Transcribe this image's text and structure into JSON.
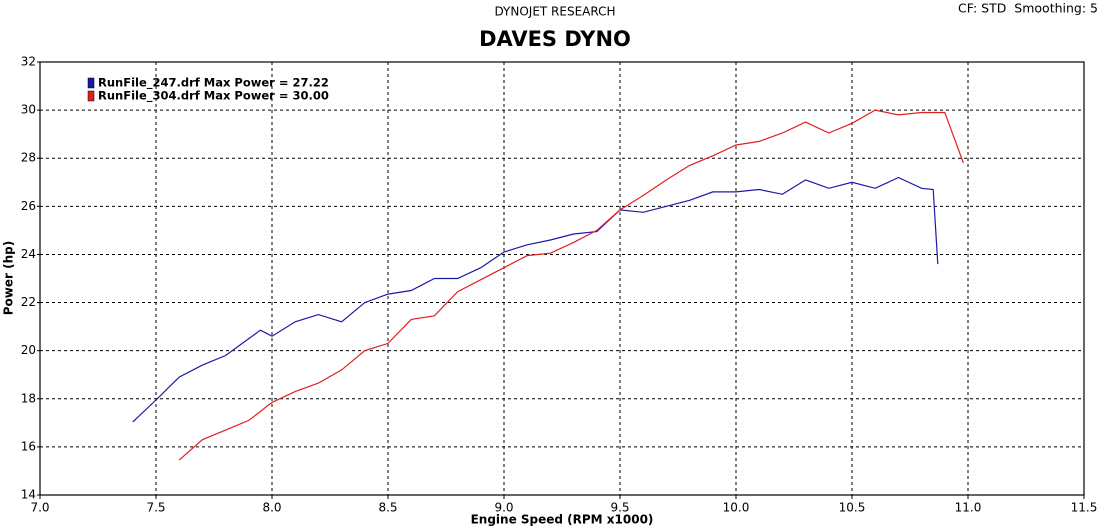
{
  "chart_data": {
    "type": "line",
    "header": "DYNOJET RESEARCH",
    "title": "DAVES DYNO",
    "settings_note": "CF: STD  Smoothing: 5",
    "xlabel": "Engine Speed (RPM x1000)",
    "ylabel": "Power (hp)",
    "xlim": [
      7,
      11.5
    ],
    "ylim": [
      14,
      32
    ],
    "xticks": [
      {
        "value": 7,
        "label": "7.0"
      },
      7.5,
      {
        "value": 8,
        "label": "8.0"
      },
      8.5,
      {
        "value": 9,
        "label": "9.0"
      },
      9.5,
      {
        "value": 10,
        "label": "10.0"
      },
      10.5,
      {
        "value": 11,
        "label": "11.0"
      },
      11.5
    ],
    "yticks": [
      14,
      16,
      18,
      20,
      22,
      24,
      26,
      28,
      30,
      32
    ],
    "grid": true,
    "legend": "upper left",
    "series": [
      {
        "name": "RunFile_247.drf Max Power = 27.22",
        "color": "#1a1aa6",
        "x": [
          7.4,
          7.5,
          7.6,
          7.7,
          7.8,
          7.9,
          7.95,
          8.0,
          8.1,
          8.2,
          8.3,
          8.4,
          8.5,
          8.6,
          8.7,
          8.8,
          8.9,
          9.0,
          9.1,
          9.2,
          9.3,
          9.4,
          9.5,
          9.6,
          9.7,
          9.8,
          9.9,
          10.0,
          10.1,
          10.2,
          10.3,
          10.4,
          10.5,
          10.6,
          10.7,
          10.8,
          10.85,
          10.87
        ],
        "values": [
          17.04,
          17.95,
          18.9,
          19.4,
          19.8,
          20.5,
          20.85,
          20.6,
          21.2,
          21.5,
          21.2,
          22.0,
          22.35,
          22.5,
          23.0,
          23.0,
          23.45,
          24.1,
          24.4,
          24.6,
          24.85,
          24.95,
          25.85,
          25.75,
          26.0,
          26.25,
          26.6,
          26.6,
          26.7,
          26.5,
          27.1,
          26.75,
          27.0,
          26.75,
          27.2,
          26.75,
          26.7,
          23.6
        ]
      },
      {
        "name": "RunFile_304.drf Max Power = 30.00",
        "color": "#e02020",
        "x": [
          7.6,
          7.7,
          7.8,
          7.9,
          8.0,
          8.1,
          8.2,
          8.3,
          8.4,
          8.5,
          8.6,
          8.7,
          8.8,
          8.9,
          9.0,
          9.1,
          9.2,
          9.3,
          9.4,
          9.5,
          9.6,
          9.7,
          9.8,
          9.9,
          10.0,
          10.1,
          10.2,
          10.3,
          10.4,
          10.5,
          10.6,
          10.7,
          10.8,
          10.9,
          10.98
        ],
        "values": [
          15.45,
          16.3,
          16.7,
          17.1,
          17.85,
          18.3,
          18.65,
          19.2,
          20.0,
          20.3,
          21.3,
          21.45,
          22.45,
          22.95,
          23.45,
          23.95,
          24.05,
          24.5,
          25.0,
          25.85,
          26.45,
          27.1,
          27.7,
          28.1,
          28.55,
          28.7,
          29.05,
          29.5,
          29.05,
          29.45,
          30.0,
          29.8,
          29.9,
          29.9,
          27.8
        ]
      }
    ]
  }
}
